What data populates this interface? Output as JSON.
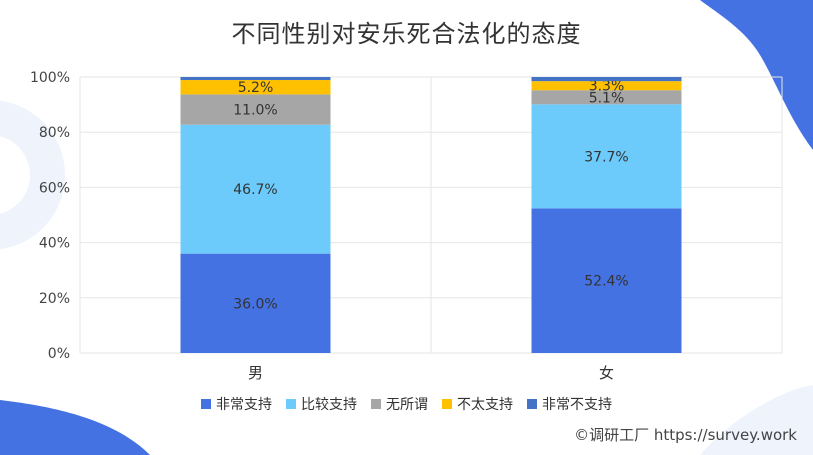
{
  "chart_data": {
    "type": "bar",
    "stacked": true,
    "title": "不同性别对安乐死合法化的态度",
    "categories": [
      "男",
      "女"
    ],
    "series": [
      {
        "name": "非常支持",
        "color": "#4472E3",
        "values": [
          36.0,
          52.4
        ],
        "labels": [
          "36.0%",
          "52.4%"
        ]
      },
      {
        "name": "比较支持",
        "color": "#6DCBFC",
        "values": [
          46.7,
          37.7
        ],
        "labels": [
          "46.7%",
          "37.7%"
        ]
      },
      {
        "name": "无所谓",
        "color": "#A6A6A6",
        "values": [
          11.0,
          5.1
        ],
        "labels": [
          "11.0%",
          "5.1%"
        ]
      },
      {
        "name": "不太支持",
        "color": "#FFC000",
        "values": [
          5.2,
          3.3
        ],
        "labels": [
          "5.2%",
          "3.3%"
        ]
      },
      {
        "name": "非常不支持",
        "color": "#4472C4",
        "values": [
          1.1,
          1.5
        ],
        "labels": [
          "",
          ""
        ]
      }
    ],
    "yticks": [
      "0%",
      "20%",
      "40%",
      "60%",
      "80%",
      "100%"
    ],
    "ylim": [
      0,
      100
    ],
    "grid": true,
    "legend_position": "bottom"
  },
  "watermark": "©调研工厂 https://survey.work"
}
